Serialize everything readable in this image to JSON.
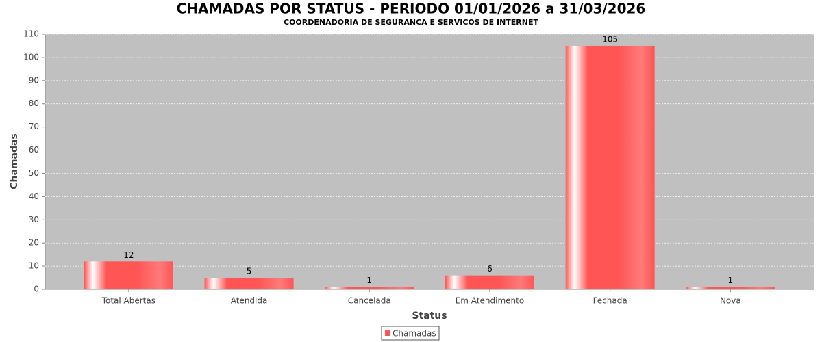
{
  "chart_data": {
    "type": "bar",
    "title": "CHAMADAS POR STATUS - PERIODO 01/01/2026 a 31/03/2026",
    "subtitle": "COORDENADORIA DE SEGURANCA E SERVICOS DE INTERNET",
    "x_label": "Status",
    "y_label": "Chamadas",
    "categories": [
      "Total Abertas",
      "Atendida",
      "Cancelada",
      "Em Atendimento",
      "Fechada",
      "Nova"
    ],
    "series": [
      {
        "name": "Chamadas",
        "color": "#ff5555",
        "values": [
          12,
          5,
          1,
          6,
          105,
          1
        ]
      }
    ],
    "ylim": [
      0,
      110
    ],
    "yticks": [
      0,
      10,
      20,
      30,
      40,
      50,
      60,
      70,
      80,
      90,
      100,
      110
    ],
    "grid": true
  }
}
